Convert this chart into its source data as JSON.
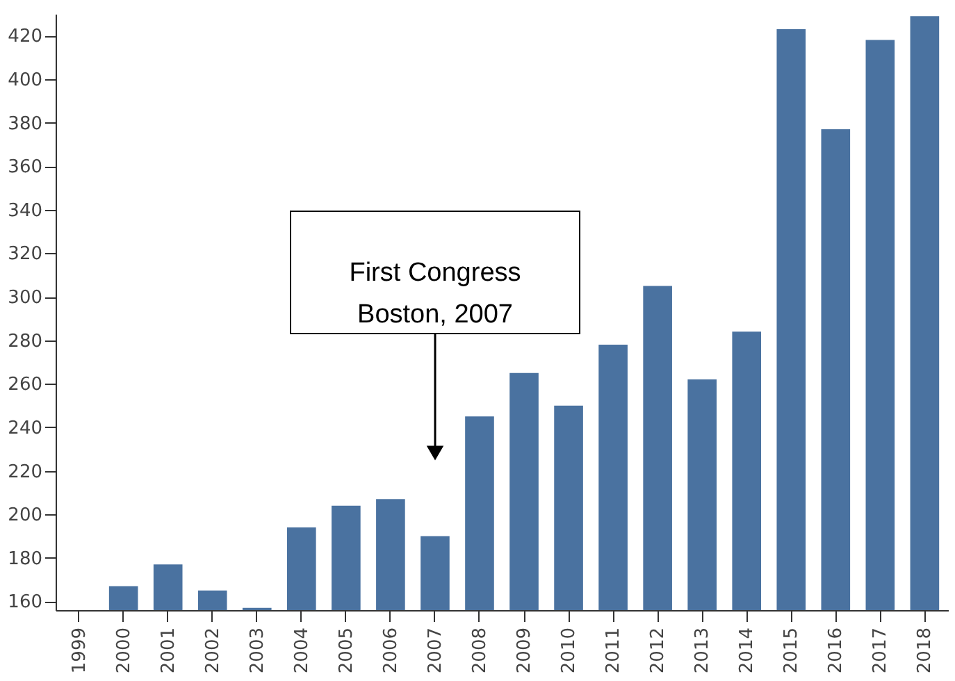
{
  "chart_data": {
    "type": "bar",
    "categories": [
      "1999",
      "2000",
      "2001",
      "2002",
      "2003",
      "2004",
      "2005",
      "2006",
      "2007",
      "2008",
      "2009",
      "2010",
      "2011",
      "2012",
      "2013",
      "2014",
      "2015",
      "2016",
      "2017",
      "2018"
    ],
    "values": [
      null,
      167,
      177,
      165,
      157,
      194,
      204,
      207,
      190,
      245,
      265,
      250,
      278,
      305,
      262,
      284,
      423,
      377,
      418,
      429
    ],
    "color": "#4a72a0",
    "ylim": [
      156,
      430
    ],
    "yticks": [
      160,
      180,
      200,
      220,
      240,
      260,
      280,
      300,
      320,
      340,
      360,
      380,
      400,
      420
    ],
    "grid": false,
    "annotations": [
      "First Congress\nBoston, 2007"
    ]
  }
}
